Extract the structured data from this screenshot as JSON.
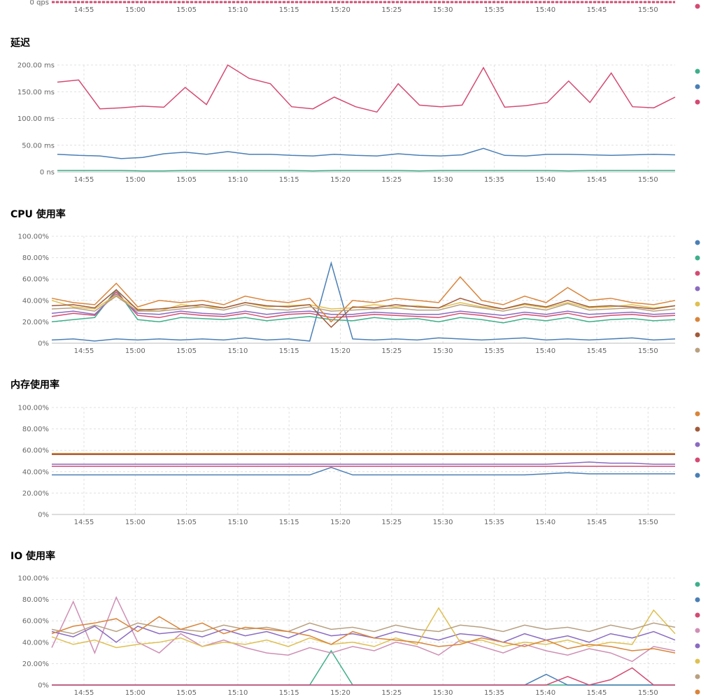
{
  "colors": {
    "green": "#3daf8a",
    "blue": "#4a7fb5",
    "red": "#d44a72",
    "purple": "#8a6bc0",
    "pink": "#cf8fb5",
    "yellow": "#dfc050",
    "tan": "#b8a080",
    "orange": "#d9843a",
    "brown": "#a15a3a"
  },
  "x_ticks": [
    "14:55",
    "15:00",
    "15:05",
    "15:10",
    "15:15",
    "15:20",
    "15:25",
    "15:30",
    "15:35",
    "15:40",
    "15:45",
    "15:50"
  ],
  "panels": {
    "qps": {
      "title": "",
      "ytick": "0 qps"
    },
    "latency": {
      "title": "延迟",
      "yticks": [
        "200.00 ms",
        "150.00 ms",
        "100.00 ms",
        "50.00 ms",
        "0 ns"
      ]
    },
    "cpu": {
      "title": "CPU 使用率",
      "yticks": [
        "100.00%",
        "80.00%",
        "60.00%",
        "40.00%",
        "20.00%",
        "0%"
      ]
    },
    "mem": {
      "title": "内存使用率",
      "yticks": [
        "100.00%",
        "80.00%",
        "60.00%",
        "40.00%",
        "20.00%",
        "0%"
      ]
    },
    "io": {
      "title": "IO 使用率",
      "yticks": [
        "100.00%",
        "80.00%",
        "60.00%",
        "40.00%",
        "20.00%",
        "0%"
      ]
    }
  },
  "chart_data": [
    {
      "type": "line",
      "title": "",
      "ylabel": "",
      "ylim": [
        0,
        1
      ],
      "unit": "qps",
      "series": [
        {
          "color": "#d44a72",
          "values": [
            0,
            0
          ]
        }
      ]
    },
    {
      "type": "line",
      "title": "延迟",
      "ylim": [
        0,
        200
      ],
      "unit": "ms",
      "series": [
        {
          "color": "#3daf8a",
          "values": [
            3,
            3,
            3,
            3,
            2,
            2,
            3,
            3,
            3,
            3,
            3,
            3,
            2,
            3,
            3,
            3,
            3,
            2,
            3,
            3,
            3,
            3,
            3,
            3,
            2,
            3,
            3,
            3,
            3,
            3
          ]
        },
        {
          "color": "#4a7fb5",
          "values": [
            33,
            31,
            30,
            25,
            27,
            34,
            37,
            33,
            38,
            33,
            33,
            31,
            30,
            33,
            31,
            30,
            34,
            31,
            30,
            32,
            44,
            31,
            30,
            33,
            33,
            32,
            31,
            32,
            33,
            32
          ]
        },
        {
          "color": "#d44a72",
          "values": [
            168,
            172,
            118,
            120,
            123,
            121,
            158,
            126,
            200,
            175,
            165,
            122,
            118,
            140,
            122,
            112,
            165,
            125,
            122,
            125,
            195,
            121,
            124,
            130,
            170,
            130,
            185,
            122,
            120,
            140
          ]
        }
      ]
    },
    {
      "type": "line",
      "title": "CPU 使用率",
      "ylim": [
        0,
        100
      ],
      "unit": "%",
      "series": [
        {
          "color": "#4a7fb5",
          "values": [
            3,
            4,
            2,
            4,
            3,
            4,
            3,
            4,
            3,
            5,
            3,
            4,
            2,
            75,
            4,
            3,
            4,
            3,
            5,
            4,
            3,
            4,
            5,
            3,
            4,
            3,
            4,
            5,
            3,
            4
          ]
        },
        {
          "color": "#3daf8a",
          "values": [
            20,
            22,
            24,
            50,
            22,
            20,
            24,
            23,
            22,
            24,
            21,
            23,
            25,
            22,
            21,
            24,
            22,
            23,
            20,
            24,
            22,
            19,
            23,
            21,
            24,
            20,
            22,
            23,
            21,
            22
          ]
        },
        {
          "color": "#d44a72",
          "values": [
            25,
            28,
            26,
            48,
            26,
            24,
            28,
            26,
            25,
            28,
            24,
            27,
            28,
            24,
            25,
            27,
            26,
            25,
            24,
            28,
            26,
            23,
            27,
            25,
            28,
            24,
            26,
            27,
            25,
            26
          ]
        },
        {
          "color": "#8a6bc0",
          "values": [
            28,
            30,
            27,
            46,
            28,
            27,
            30,
            28,
            27,
            30,
            27,
            29,
            30,
            27,
            27,
            29,
            28,
            27,
            27,
            30,
            28,
            26,
            29,
            27,
            30,
            27,
            28,
            29,
            27,
            28
          ]
        },
        {
          "color": "#dfc050",
          "values": [
            40,
            34,
            32,
            45,
            32,
            30,
            36,
            34,
            33,
            38,
            34,
            35,
            36,
            32,
            33,
            36,
            34,
            35,
            33,
            38,
            34,
            32,
            36,
            33,
            38,
            33,
            34,
            36,
            33,
            35
          ]
        },
        {
          "color": "#d9843a",
          "values": [
            42,
            38,
            36,
            56,
            34,
            40,
            38,
            40,
            36,
            44,
            40,
            38,
            42,
            20,
            40,
            38,
            42,
            40,
            38,
            62,
            40,
            36,
            44,
            38,
            52,
            40,
            42,
            38,
            36,
            40
          ]
        },
        {
          "color": "#a15a3a",
          "values": [
            35,
            36,
            33,
            50,
            31,
            32,
            34,
            36,
            33,
            38,
            35,
            34,
            36,
            15,
            34,
            33,
            36,
            34,
            33,
            42,
            36,
            32,
            37,
            34,
            40,
            34,
            35,
            34,
            32,
            35
          ]
        },
        {
          "color": "#b8a080",
          "values": [
            32,
            33,
            30,
            44,
            30,
            30,
            32,
            34,
            31,
            36,
            32,
            31,
            34,
            30,
            31,
            32,
            33,
            31,
            31,
            36,
            33,
            30,
            34,
            31,
            37,
            31,
            32,
            33,
            30,
            32
          ]
        }
      ]
    },
    {
      "type": "line",
      "title": "内存使用率",
      "ylim": [
        0,
        100
      ],
      "unit": "%",
      "series": [
        {
          "color": "#d9843a",
          "values": [
            57,
            57,
            57,
            57,
            57,
            57,
            57,
            57,
            57,
            57,
            57,
            57,
            57,
            57,
            57,
            57,
            57,
            57,
            57,
            57,
            57,
            57,
            57,
            57,
            57,
            57,
            57,
            57,
            57,
            57
          ]
        },
        {
          "color": "#a15a3a",
          "values": [
            56,
            56,
            56,
            56,
            56,
            56,
            56,
            56,
            56,
            56,
            56,
            56,
            56,
            56,
            56,
            56,
            56,
            56,
            56,
            56,
            56,
            56,
            56,
            56,
            56,
            56,
            56,
            56,
            56,
            56
          ]
        },
        {
          "color": "#8a6bc0",
          "values": [
            47,
            47,
            47,
            47,
            47,
            47,
            47,
            47,
            47,
            47,
            47,
            47,
            47,
            47,
            47,
            47,
            47,
            47,
            47,
            47,
            47,
            47,
            47,
            47,
            48,
            49,
            48,
            48,
            47,
            47
          ]
        },
        {
          "color": "#d44a72",
          "values": [
            45,
            45,
            45,
            45,
            45,
            45,
            45,
            45,
            45,
            45,
            45,
            45,
            45,
            45,
            45,
            45,
            45,
            45,
            45,
            45,
            45,
            45,
            45,
            45,
            45,
            45,
            45,
            45,
            45,
            45
          ]
        },
        {
          "color": "#4a7fb5",
          "values": [
            37,
            37,
            37,
            37,
            37,
            37,
            37,
            37,
            37,
            37,
            37,
            37,
            37,
            44,
            37,
            37,
            37,
            37,
            37,
            37,
            37,
            37,
            37,
            38,
            39,
            38,
            38,
            38,
            38,
            38
          ]
        }
      ]
    },
    {
      "type": "line",
      "title": "IO 使用率",
      "ylim": [
        0,
        100
      ],
      "unit": "%",
      "series": [
        {
          "color": "#3daf8a",
          "values": [
            0,
            0,
            0,
            0,
            0,
            0,
            0,
            0,
            0,
            0,
            0,
            0,
            0,
            32,
            0,
            0,
            0,
            0,
            0,
            0,
            0,
            0,
            0,
            0,
            0,
            0,
            0,
            0,
            0,
            0
          ]
        },
        {
          "color": "#4a7fb5",
          "values": [
            0,
            0,
            0,
            0,
            0,
            0,
            0,
            0,
            0,
            0,
            0,
            0,
            0,
            0,
            0,
            0,
            0,
            0,
            0,
            0,
            0,
            0,
            0,
            10,
            0,
            0,
            0,
            0,
            0,
            0
          ]
        },
        {
          "color": "#d44a72",
          "values": [
            0,
            0,
            0,
            0,
            0,
            0,
            0,
            0,
            0,
            0,
            0,
            0,
            0,
            0,
            0,
            0,
            0,
            0,
            0,
            0,
            0,
            0,
            0,
            0,
            8,
            0,
            5,
            16,
            0,
            0
          ]
        },
        {
          "color": "#cf8fb5",
          "values": [
            35,
            78,
            30,
            82,
            40,
            30,
            48,
            36,
            42,
            35,
            30,
            28,
            35,
            30,
            36,
            32,
            40,
            36,
            28,
            42,
            36,
            30,
            38,
            32,
            28,
            34,
            30,
            22,
            36,
            32
          ]
        },
        {
          "color": "#8a6bc0",
          "values": [
            50,
            45,
            55,
            40,
            55,
            48,
            50,
            45,
            52,
            46,
            50,
            44,
            52,
            46,
            48,
            44,
            50,
            46,
            42,
            48,
            46,
            40,
            48,
            42,
            46,
            40,
            48,
            44,
            50,
            42
          ]
        },
        {
          "color": "#dfc050",
          "values": [
            45,
            38,
            42,
            35,
            38,
            40,
            44,
            36,
            40,
            38,
            42,
            36,
            44,
            38,
            40,
            36,
            44,
            38,
            72,
            40,
            42,
            36,
            40,
            38,
            42,
            36,
            40,
            38,
            70,
            48
          ]
        },
        {
          "color": "#b8a080",
          "values": [
            52,
            48,
            56,
            50,
            58,
            54,
            52,
            50,
            56,
            52,
            54,
            50,
            58,
            52,
            54,
            50,
            56,
            52,
            50,
            56,
            54,
            50,
            56,
            52,
            54,
            50,
            56,
            52,
            58,
            54
          ]
        },
        {
          "color": "#d9843a",
          "values": [
            48,
            55,
            58,
            62,
            50,
            64,
            52,
            58,
            48,
            54,
            52,
            50,
            46,
            38,
            50,
            44,
            42,
            40,
            36,
            38,
            44,
            40,
            36,
            42,
            34,
            38,
            36,
            32,
            34,
            30
          ]
        }
      ]
    }
  ]
}
